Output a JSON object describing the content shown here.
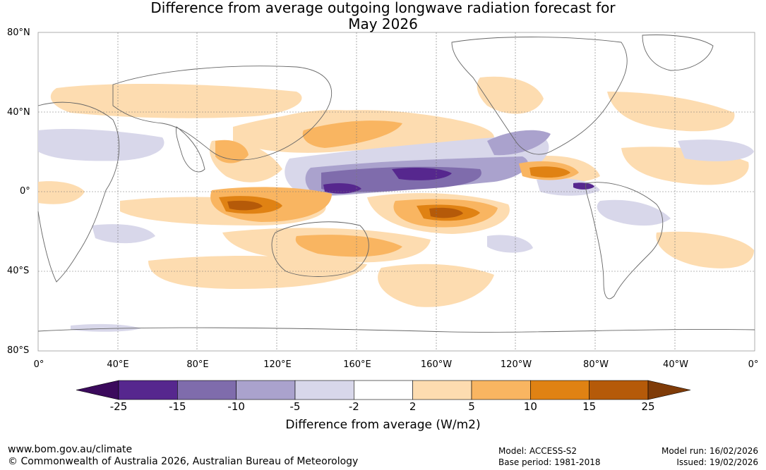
{
  "title": {
    "line1": "Difference from average outgoing longwave radiation forecast for",
    "line2": "May 2026"
  },
  "lat_labels": [
    "80°N",
    "40°N",
    "0°",
    "40°S",
    "80°S"
  ],
  "lon_labels": [
    "0°",
    "40°E",
    "80°E",
    "120°E",
    "160°E",
    "160°W",
    "120°W",
    "80°W",
    "40°W",
    "0°"
  ],
  "colorbar": {
    "title": "Difference from average (W/m2)",
    "ticks": [
      "-25",
      "-15",
      "-10",
      "-5",
      "-2",
      "2",
      "5",
      "10",
      "15",
      "25"
    ],
    "colors": [
      "#3b0a5c",
      "#56278e",
      "#7f6cac",
      "#aaa2cd",
      "#d8d7ea",
      "#ffffff",
      "#fddcb0",
      "#f9b561",
      "#e08213",
      "#b55a09",
      "#7f3b08"
    ]
  },
  "footer": {
    "url": "www.bom.gov.au/climate",
    "copyright": "© Commonwealth of Australia 2026, Australian Bureau of Meteorology",
    "model": "Model: ACCESS-S2",
    "base_period": "Base period: 1981-2018",
    "model_run": "Model run: 16/02/2026",
    "issued": "Issued: 19/02/2026"
  }
}
